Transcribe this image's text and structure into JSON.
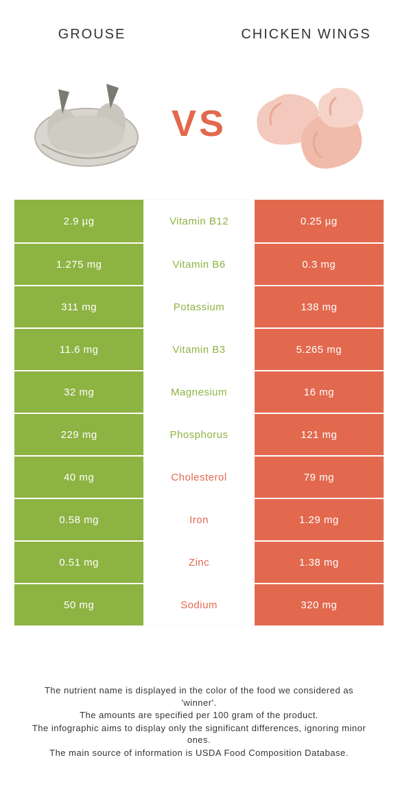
{
  "header": {
    "left_title": "GROUSE",
    "right_title": "CHICKEN WINGS",
    "vs": "VS"
  },
  "colors": {
    "left": "#8db342",
    "right": "#e2694e",
    "vs": "#e2694e",
    "row_bg_muted": "#fafafa"
  },
  "rows": [
    {
      "left": "2.9 µg",
      "mid": "Vitamin B12",
      "right": "0.25 µg",
      "winner": "left"
    },
    {
      "left": "1.275 mg",
      "mid": "Vitamin B6",
      "right": "0.3 mg",
      "winner": "left"
    },
    {
      "left": "311 mg",
      "mid": "Potassium",
      "right": "138 mg",
      "winner": "left"
    },
    {
      "left": "11.6 mg",
      "mid": "Vitamin B3",
      "right": "5.265 mg",
      "winner": "left"
    },
    {
      "left": "32 mg",
      "mid": "Magnesium",
      "right": "16 mg",
      "winner": "left"
    },
    {
      "left": "229 mg",
      "mid": "Phosphorus",
      "right": "121 mg",
      "winner": "left"
    },
    {
      "left": "40 mg",
      "mid": "Cholesterol",
      "right": "79 mg",
      "winner": "right"
    },
    {
      "left": "0.58 mg",
      "mid": "Iron",
      "right": "1.29 mg",
      "winner": "right"
    },
    {
      "left": "0.51 mg",
      "mid": "Zinc",
      "right": "1.38 mg",
      "winner": "right"
    },
    {
      "left": "50 mg",
      "mid": "Sodium",
      "right": "320 mg",
      "winner": "right"
    }
  ],
  "footer": {
    "l1": "The nutrient name is displayed in the color of the food we considered as 'winner'.",
    "l2": "The amounts are specified per 100 gram of the product.",
    "l3": "The infographic aims to display only the significant differences, ignoring minor ones.",
    "l4": "The main source of information is USDA Food Composition Database."
  }
}
